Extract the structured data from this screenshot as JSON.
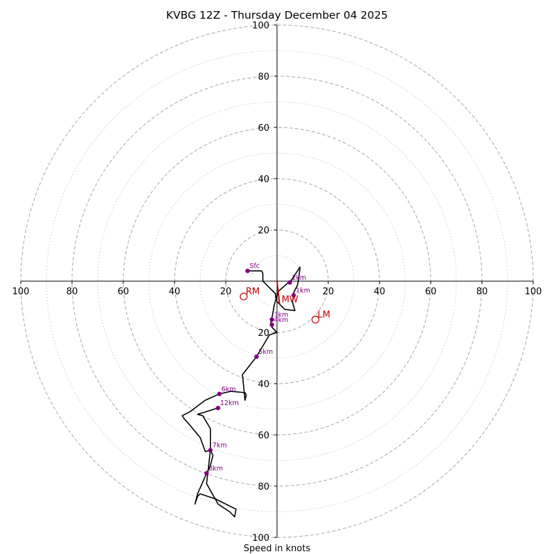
{
  "chart_data": {
    "type": "hodograph",
    "title": "KVBG 12Z - Thursday December 04 2025",
    "xlabel": "Speed in knots",
    "range": [
      -100,
      100
    ],
    "ring_major": [
      20,
      40,
      60,
      80,
      100
    ],
    "ring_minor": [
      10,
      30,
      50,
      70,
      90
    ],
    "tick_labels": {
      "left": [
        "100",
        "80",
        "60",
        "40",
        "20"
      ],
      "right": [
        "20",
        "40",
        "60",
        "80",
        "100"
      ],
      "top": [
        "20",
        "40",
        "60",
        "80",
        "100"
      ],
      "bottom": [
        "20",
        "40",
        "60",
        "80",
        "100"
      ]
    },
    "wind_trace": [
      [
        -11.5,
        4.0
      ],
      [
        -6,
        4.0
      ],
      [
        -5.5,
        3.0
      ],
      [
        -5.5,
        0
      ],
      [
        -3,
        -2.5
      ],
      [
        -0.5,
        -5
      ],
      [
        -0.5,
        -6.5
      ],
      [
        -0.5,
        -5.5
      ],
      [
        0,
        -8
      ],
      [
        3,
        -11
      ],
      [
        7,
        -11.5
      ],
      [
        6,
        -8
      ],
      [
        6.5,
        -6
      ],
      [
        6.5,
        -4.5
      ],
      [
        8,
        -1.5
      ],
      [
        8.5,
        1
      ],
      [
        9,
        5.5
      ],
      [
        5,
        -0.5
      ],
      [
        4.5,
        -0.5
      ],
      [
        0.5,
        -4
      ],
      [
        -1,
        -9
      ],
      [
        -2,
        -14.5
      ],
      [
        -2.5,
        -16.5
      ],
      [
        -1.5,
        -17
      ],
      [
        -2,
        -18
      ],
      [
        0,
        -20
      ],
      [
        -3,
        -21
      ],
      [
        -8,
        -29.5
      ],
      [
        -13.5,
        -36.5
      ],
      [
        -12.5,
        -46.5
      ],
      [
        -12,
        -44.5
      ],
      [
        -12.5,
        -43.5
      ],
      [
        -18,
        -43
      ],
      [
        -22.5,
        -44
      ],
      [
        -28,
        -46.5
      ],
      [
        -34,
        -51
      ],
      [
        -37,
        -52.5
      ],
      [
        -36,
        -54
      ],
      [
        -35,
        -55
      ],
      [
        -30,
        -61
      ],
      [
        -28,
        -66.5
      ],
      [
        -26,
        -66
      ],
      [
        -25,
        -68
      ],
      [
        -26,
        -72
      ],
      [
        -27.5,
        -75
      ],
      [
        -31,
        -83
      ],
      [
        -32,
        -87
      ],
      [
        -31,
        -84
      ],
      [
        -30,
        -83
      ],
      [
        -24,
        -85
      ],
      [
        -16,
        -89
      ],
      [
        -16.5,
        -92
      ],
      [
        -18.5,
        -90
      ],
      [
        -23,
        -87
      ],
      [
        -27.5,
        -79
      ],
      [
        -27,
        -75
      ],
      [
        -26,
        -66
      ],
      [
        -26,
        -57.5
      ],
      [
        -29,
        -52.5
      ],
      [
        -31,
        -52
      ],
      [
        -23,
        -49.5
      ]
    ],
    "height_markers": [
      {
        "label": "Sfc",
        "u": -11.5,
        "v": 4.0
      },
      {
        "label": "2km",
        "u": 5,
        "v": -0.5
      },
      {
        "label": "1km",
        "u": 6.5,
        "v": -5.5
      },
      {
        "label": "3km",
        "u": -2,
        "v": -15
      },
      {
        "label": "4km",
        "u": -2,
        "v": -17
      },
      {
        "label": "5km",
        "u": -8,
        "v": -29.5
      },
      {
        "label": "6km",
        "u": -22.5,
        "v": -44
      },
      {
        "label": "12km",
        "u": -23,
        "v": -49.5
      },
      {
        "label": "7km",
        "u": -26,
        "v": -66
      },
      {
        "label": "8km",
        "u": -27.5,
        "v": -75
      }
    ],
    "storm_motion": [
      {
        "label": "RM",
        "u": -13,
        "v": -6
      },
      {
        "label": "LM",
        "u": 15,
        "v": -15
      },
      {
        "label": "MW",
        "u": 1,
        "v": -9
      }
    ],
    "mean_wind_vector": {
      "from": [
        0,
        0
      ],
      "to": [
        1,
        -9
      ]
    },
    "colors": {
      "trace": "#000000",
      "marker": "#800080",
      "storm": "#c00000",
      "ring": "#b3b3b3",
      "axis": "#000000"
    }
  }
}
